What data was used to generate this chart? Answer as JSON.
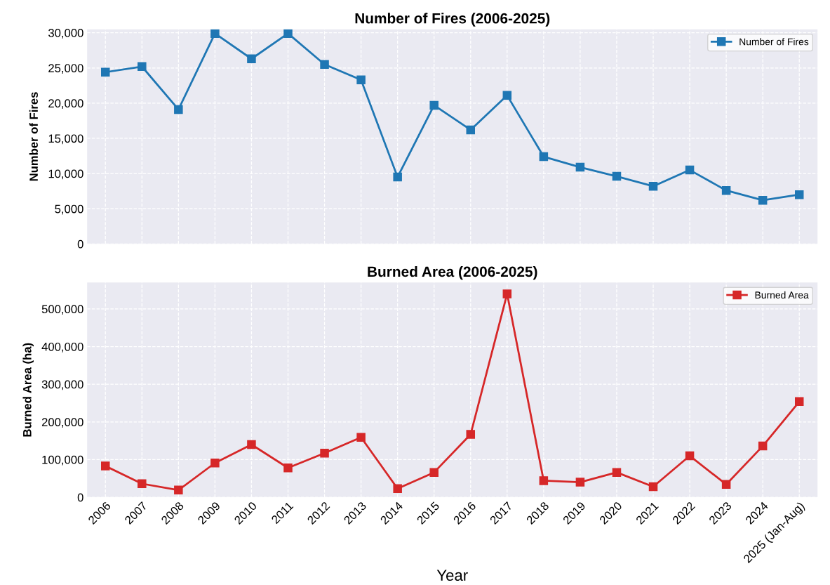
{
  "chart_data": [
    {
      "type": "line",
      "title": "Number of Fires (2006-2025)",
      "ylabel": "Number of Fires",
      "categories": [
        null,
        null,
        null,
        null,
        null,
        null,
        null,
        null,
        null,
        null,
        null,
        null,
        null,
        null,
        null,
        null,
        null,
        null,
        null,
        null
      ],
      "series": [
        {
          "name": "Number of Fires",
          "color": "#1f77b4",
          "values": [
            24400,
            25200,
            19100,
            29900,
            26300,
            29900,
            25500,
            23300,
            9500,
            19700,
            16200,
            21100,
            12400,
            10900,
            9600,
            8200,
            10500,
            7600,
            6200,
            7000
          ]
        }
      ],
      "ylim": [
        0,
        30500
      ],
      "yticks": [
        {
          "value": 0,
          "label": "0"
        },
        {
          "value": 5000,
          "label": "5,000"
        },
        {
          "value": 10000,
          "label": "10,000"
        },
        {
          "value": 15000,
          "label": "15,000"
        },
        {
          "value": 20000,
          "label": "20,000"
        },
        {
          "value": 25000,
          "label": "25,000"
        },
        {
          "value": 30000,
          "label": "30,000"
        }
      ],
      "tick_labels": "y",
      "grid": true,
      "legend": "top right",
      "marker": "square",
      "line_style": "solid"
    },
    {
      "type": "line",
      "title": "Burned Area (2006-2025)",
      "ylabel": "Burned Area (ha)",
      "xlabel": "Year",
      "categories": [
        "2006",
        "2007",
        "2008",
        "2009",
        "2010",
        "2011",
        "2012",
        "2013",
        "2014",
        "2015",
        "2016",
        "2017",
        "2018",
        "2019",
        "2020",
        "2021",
        "2022",
        "2023",
        "2024",
        "2025 (Jan-Aug)"
      ],
      "series": [
        {
          "name": "Burned Area",
          "color": "#d62728",
          "values": [
            83000,
            36000,
            19000,
            91000,
            140000,
            78000,
            117000,
            159000,
            23000,
            66000,
            167000,
            540000,
            44000,
            40000,
            66000,
            28000,
            110000,
            34000,
            136000,
            254000
          ]
        }
      ],
      "ylim": [
        0,
        570000
      ],
      "yticks": [
        {
          "value": 0,
          "label": "0"
        },
        {
          "value": 100000,
          "label": "100,000"
        },
        {
          "value": 200000,
          "label": "200,000"
        },
        {
          "value": 300000,
          "label": "300,000"
        },
        {
          "value": 400000,
          "label": "400,000"
        },
        {
          "value": 500000,
          "label": "500,000"
        }
      ],
      "grid": true,
      "legend": "top right",
      "marker": "square",
      "line_style": "solid"
    }
  ]
}
